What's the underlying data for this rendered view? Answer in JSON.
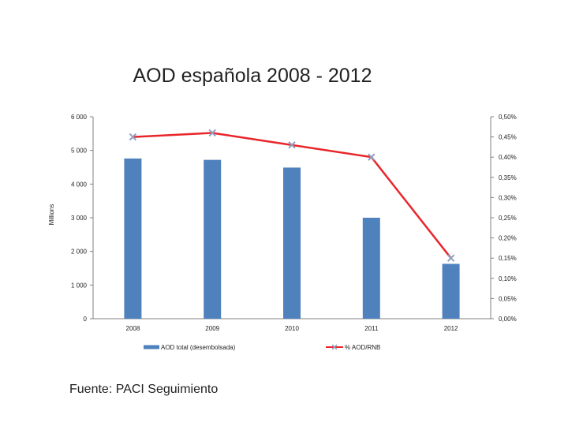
{
  "title": "AOD española 2008 - 2012",
  "source": "Fuente: PACI Seguimiento",
  "colors": {
    "bar": "#4f81bd",
    "line": "#e8262b",
    "marker": "#8f9fc0",
    "axis": "#808080"
  },
  "chart_data": {
    "type": "bar",
    "categories": [
      "2008",
      "2009",
      "2010",
      "2011",
      "2012"
    ],
    "series": [
      {
        "name": "AOD total (desembolsada)",
        "kind": "bar",
        "axis": "left",
        "values": [
          4760,
          4720,
          4490,
          3000,
          1630
        ]
      },
      {
        "name": "% AOD/RNB",
        "kind": "line",
        "axis": "right",
        "values": [
          0.45,
          0.46,
          0.43,
          0.4,
          0.15
        ]
      }
    ],
    "ylabel": "Millions",
    "ylim": [
      0,
      6000
    ],
    "y_ticks": [
      0,
      1000,
      2000,
      3000,
      4000,
      5000,
      6000
    ],
    "y_tick_labels": [
      "0",
      "1 000",
      "2 000",
      "3 000",
      "4 000",
      "5 000",
      "6 000"
    ],
    "y2lim": [
      0,
      0.5
    ],
    "y2_ticks": [
      0,
      0.05,
      0.1,
      0.15,
      0.2,
      0.25,
      0.3,
      0.35,
      0.4,
      0.45,
      0.5
    ],
    "y2_tick_labels": [
      "0,00%",
      "0,05%",
      "0,10%",
      "0,15%",
      "0,20%",
      "0,25%",
      "0,30%",
      "0,35%",
      "0,40%",
      "0,45%",
      "0,50%"
    ],
    "grid": false,
    "legend_position": "bottom"
  }
}
